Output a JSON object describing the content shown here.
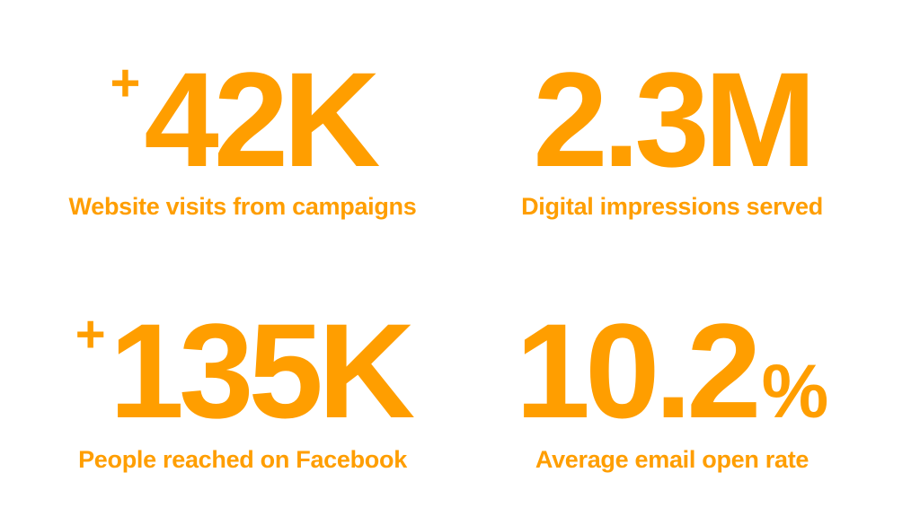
{
  "stats": [
    {
      "prefix": "+",
      "value": "42K",
      "label": "Website visits from campaigns"
    },
    {
      "value": "2.3M",
      "label": "Digital impressions served"
    },
    {
      "prefix": "+",
      "value": "135K",
      "label": "People reached on Facebook"
    },
    {
      "value": "10.2",
      "suffix": "%",
      "label": "Average email open rate"
    }
  ]
}
